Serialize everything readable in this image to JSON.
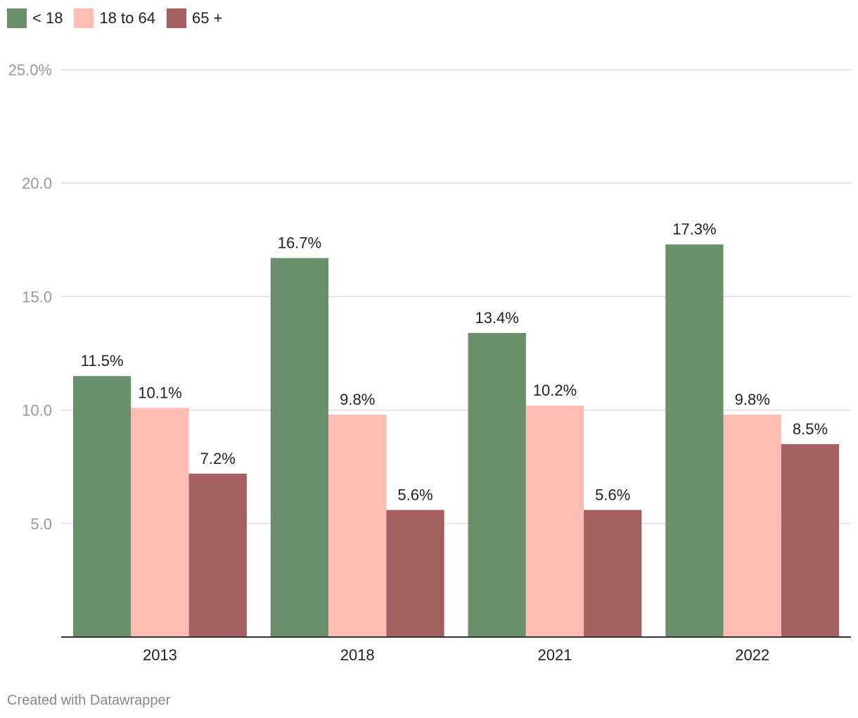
{
  "legend": {
    "items": [
      {
        "label": "< 18",
        "color": "#6a8f6b"
      },
      {
        "label": "18 to 64",
        "color": "#ffbcb3"
      },
      {
        "label": "65 +",
        "color": "#a55f61"
      }
    ]
  },
  "footer": {
    "text": "Created with Datawrapper"
  },
  "chart_data": {
    "type": "bar",
    "categories": [
      "2013",
      "2018",
      "2021",
      "2022"
    ],
    "series": [
      {
        "name": "< 18",
        "color": "#6a8f6b",
        "values": [
          11.5,
          16.7,
          13.4,
          17.3
        ],
        "labels": [
          "11.5%",
          "16.7%",
          "13.4%",
          "17.3%"
        ]
      },
      {
        "name": "18 to 64",
        "color": "#ffbcb3",
        "values": [
          10.1,
          9.8,
          10.2,
          9.8
        ],
        "labels": [
          "10.1%",
          "9.8%",
          "10.2%",
          "9.8%"
        ]
      },
      {
        "name": "65 +",
        "color": "#a55f61",
        "values": [
          7.2,
          5.6,
          5.6,
          8.5
        ],
        "labels": [
          "7.2%",
          "5.6%",
          "5.6%",
          "8.5%"
        ]
      }
    ],
    "y_ticks": [
      {
        "value": 25,
        "label": "25.0%"
      },
      {
        "value": 20,
        "label": "20.0"
      },
      {
        "value": 15,
        "label": "15.0"
      },
      {
        "value": 10,
        "label": "10.0"
      },
      {
        "value": 5,
        "label": "5.0"
      }
    ],
    "ylim": [
      0,
      25
    ],
    "grid": true,
    "legend_position": "top-left",
    "title": "",
    "xlabel": "",
    "ylabel": ""
  }
}
